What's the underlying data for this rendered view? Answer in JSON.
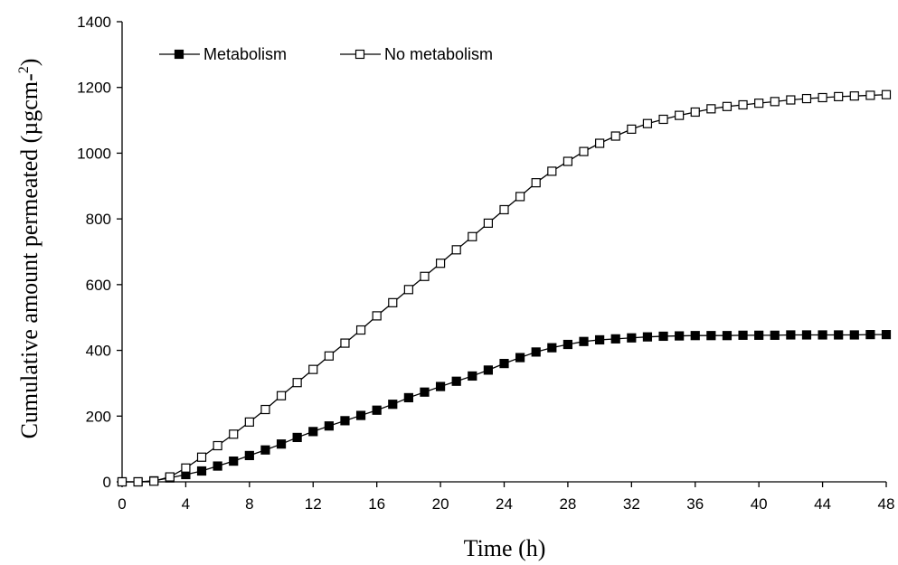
{
  "chart_data": {
    "type": "line",
    "title": "",
    "xlabel": "Time (h)",
    "ylabel": "Cumulative amount permeated (µgcm-2)",
    "ylabel_parts": {
      "main": "Cumulative amount permeated (µgcm-",
      "sup": "2",
      "close": ")"
    },
    "xlim": [
      0,
      48
    ],
    "ylim": [
      0,
      1400
    ],
    "x_ticks": [
      0,
      4,
      8,
      12,
      16,
      20,
      24,
      28,
      32,
      36,
      40,
      44,
      48
    ],
    "y_ticks": [
      0,
      200,
      400,
      600,
      800,
      1000,
      1200,
      1400
    ],
    "grid": false,
    "legend_position": "top-left",
    "x": [
      0,
      1,
      2,
      3,
      4,
      5,
      6,
      7,
      8,
      9,
      10,
      11,
      12,
      13,
      14,
      15,
      16,
      17,
      18,
      19,
      20,
      21,
      22,
      23,
      24,
      25,
      26,
      27,
      28,
      29,
      30,
      31,
      32,
      33,
      34,
      35,
      36,
      37,
      38,
      39,
      40,
      41,
      42,
      43,
      44,
      45,
      46,
      47,
      48
    ],
    "series": [
      {
        "name": "Metabolism",
        "marker": "filled-square",
        "values": [
          0,
          0,
          3,
          12,
          22,
          33,
          48,
          63,
          80,
          97,
          115,
          135,
          153,
          170,
          186,
          202,
          218,
          236,
          256,
          273,
          290,
          306,
          322,
          340,
          360,
          378,
          395,
          408,
          418,
          427,
          432,
          435,
          438,
          441,
          443,
          444,
          445,
          445,
          445,
          446,
          446,
          446,
          447,
          447,
          447,
          447,
          447,
          448,
          448
        ]
      },
      {
        "name": "No metabolism",
        "marker": "open-square",
        "values": [
          0,
          0,
          2,
          15,
          42,
          75,
          110,
          145,
          182,
          220,
          262,
          302,
          342,
          383,
          422,
          462,
          505,
          545,
          585,
          625,
          665,
          706,
          746,
          787,
          828,
          868,
          910,
          945,
          975,
          1005,
          1030,
          1052,
          1073,
          1090,
          1103,
          1115,
          1125,
          1135,
          1142,
          1147,
          1152,
          1157,
          1162,
          1166,
          1169,
          1172,
          1174,
          1176,
          1178
        ]
      }
    ]
  }
}
